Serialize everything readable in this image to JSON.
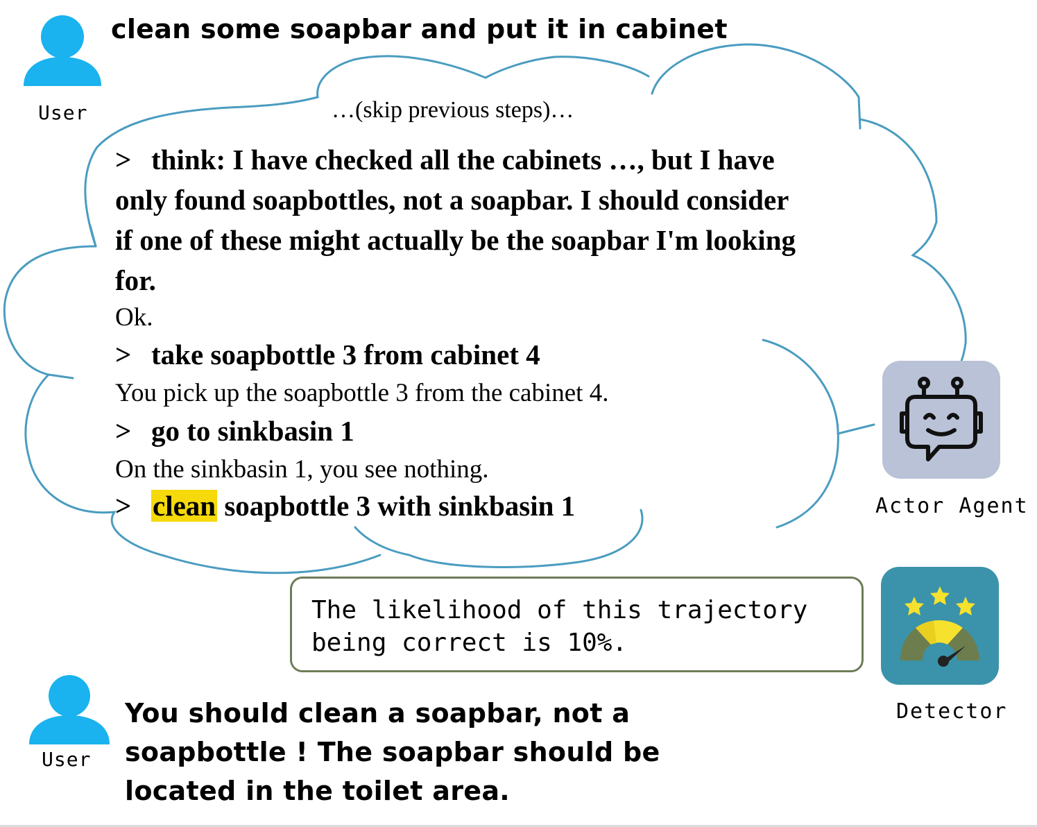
{
  "task": {
    "user_label": "User",
    "instruction": "clean some soapbar and put it in cabinet"
  },
  "trajectory": {
    "skip_text": "…(skip previous steps)…",
    "prompt_symbol": ">",
    "think_lines": [
      "think: I have checked all the cabinets …, but I have",
      "only found soapbottles, not a soapbar. I should consider",
      "if one of these might actually be the soapbar I'm looking",
      "for."
    ],
    "think_obs": "Ok.",
    "action_2": "take soapbottle 3 from cabinet 4",
    "obs_2": "You pick up the soapbottle 3 from the cabinet 4.",
    "action_3": "go to sinkbasin 1",
    "obs_3": "On the sinkbasin 1, you see nothing.",
    "action_4_highlight": "clean",
    "action_4_rest": " soapbottle 3 with sinkbasin 1",
    "highlight_color": "#f5d90a"
  },
  "agents": {
    "actor_label": "Actor Agent",
    "detector_label": "Detector"
  },
  "detector_output": {
    "line1": "The likelihood of this trajectory",
    "line2": "being correct is 10%."
  },
  "feedback": {
    "user_label": "User",
    "line1": "You should clean a soapbar, not a",
    "line2": "soapbottle ! The soapbar should be",
    "line3": "located in the toilet area."
  },
  "colors": {
    "user_icon": "#1ab2ef",
    "cloud_stroke": "#4a9cc0",
    "box_border": "#6d7d57",
    "robot_tile": "#b9c2d6",
    "detector_tile": "#3a93aa",
    "star": "#f6e12e"
  },
  "icons": [
    "user-icon",
    "robot-icon",
    "gauge-icon"
  ]
}
